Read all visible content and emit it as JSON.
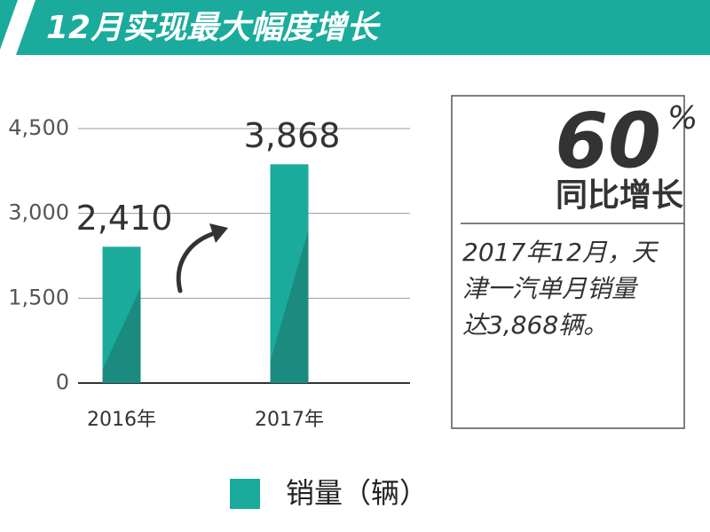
{
  "chart_data": {
    "type": "bar",
    "title": "12月实现最大幅度增长",
    "categories": [
      "2016年",
      "2017年"
    ],
    "values": [
      2410,
      3868
    ],
    "value_labels": [
      "2,410",
      "3,868"
    ],
    "color": "#1aab9c",
    "ylim": [
      0,
      4500
    ],
    "yticks": [
      {
        "value": 0,
        "label": "0"
      },
      {
        "value": 1500,
        "label": "1,500"
      },
      {
        "value": 3000,
        "label": "3,000"
      },
      {
        "value": 4500,
        "label": "4,500"
      }
    ],
    "grid": true,
    "legend": "销量（辆）",
    "callout": {
      "value": 60,
      "unit": "%",
      "label": "同比增长",
      "text_lines": [
        "2017年12月，天",
        "津一汽单月销量",
        "达3,868辆。"
      ]
    }
  }
}
